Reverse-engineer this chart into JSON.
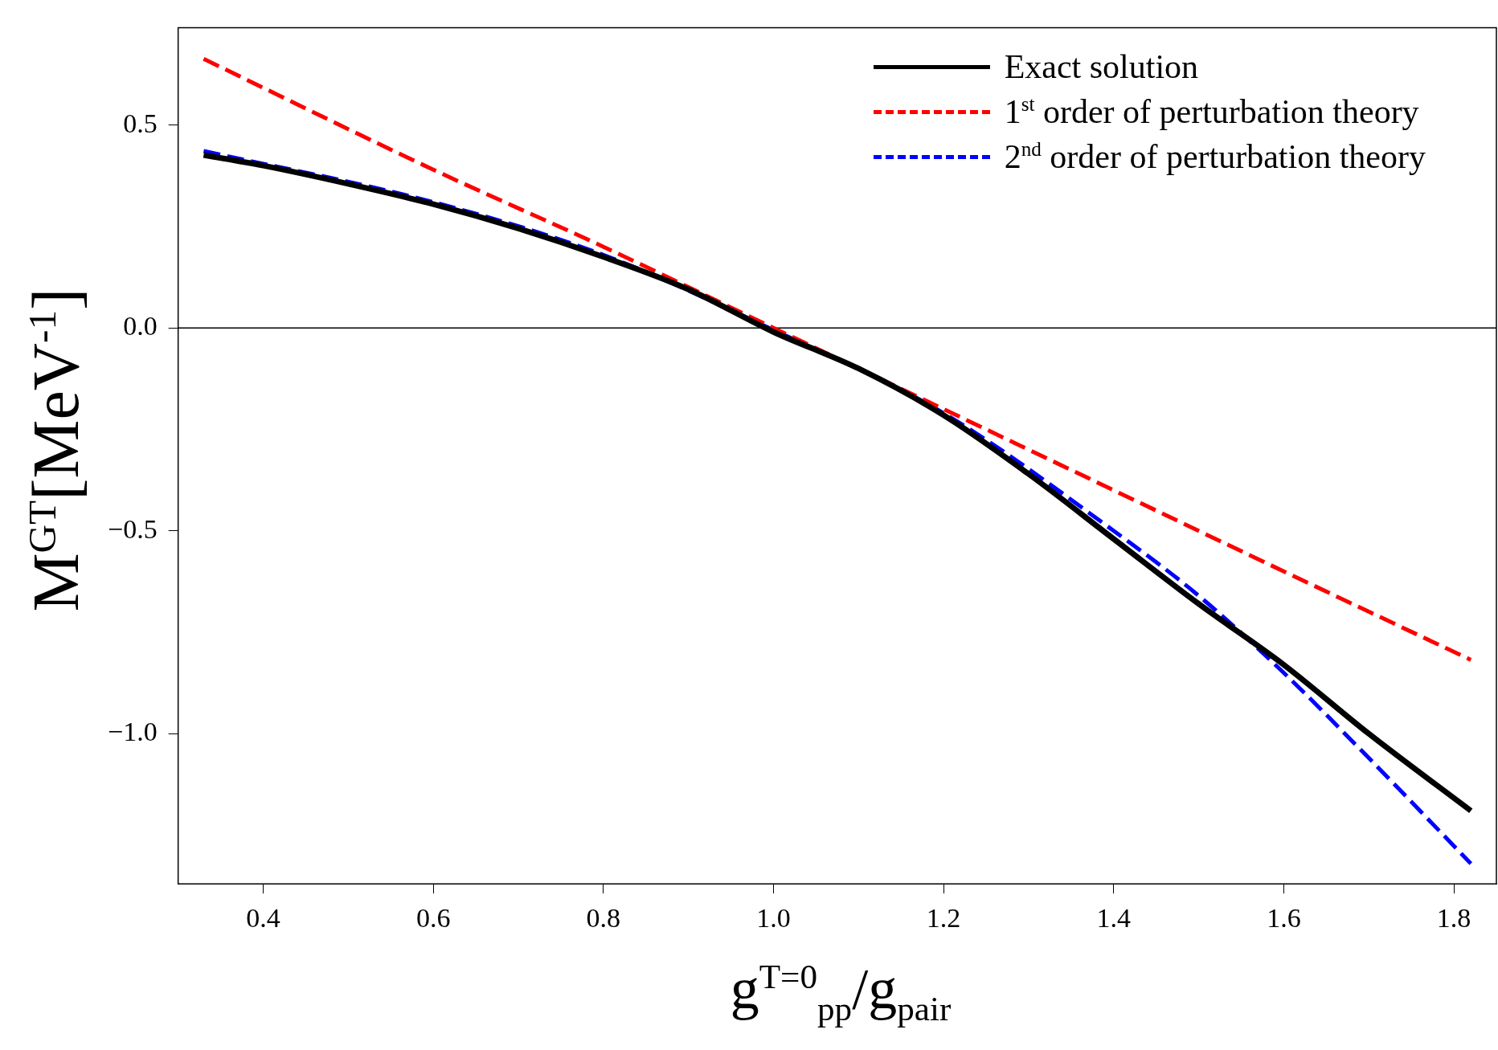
{
  "chart_data": {
    "type": "line",
    "xlabel": "g$^{T=0}$$_{pp}$/g$_{pair}$",
    "ylabel": "M$^{GT}$[MeV$^{-1}$]",
    "xlim": [
      0.3,
      1.85
    ],
    "xticks": [
      0.4,
      0.6,
      0.8,
      {
        "value": 1,
        "label": "1.0"
      },
      1.2,
      1.4,
      1.6,
      1.8
    ],
    "ylim": [
      -1.37,
      0.74
    ],
    "yticks": [
      {
        "value": -1,
        "label": "−1.0"
      },
      {
        "value": -0.5,
        "label": "−0.5"
      },
      {
        "value": 0,
        "label": "0.0"
      },
      0.5
    ],
    "grid": false,
    "legend": "top right",
    "marker": "none",
    "ref_lines": [
      {
        "axis": "y",
        "value": 0,
        "color": "#000000"
      }
    ],
    "series": [
      {
        "name": "Exact solution",
        "color": "#000000",
        "line_style": "solid",
        "x": [
          0.33,
          0.4,
          0.5,
          0.6,
          0.7,
          0.8,
          0.9,
          1.0,
          1.1,
          1.2,
          1.3,
          1.4,
          1.5,
          1.6,
          1.7,
          1.82
        ],
        "values": [
          0.426,
          0.4,
          0.355,
          0.305,
          0.245,
          0.175,
          0.095,
          -0.01,
          -0.1,
          -0.215,
          -0.36,
          -0.52,
          -0.68,
          -0.83,
          -1.0,
          -1.19
        ]
      },
      {
        "name": "1$^{st}$ order of perturbation theory",
        "color": "#ff0000",
        "line_style": "dashed",
        "x": [
          0.33,
          0.6,
          0.8,
          1.0,
          1.2,
          1.4,
          1.6,
          1.82
        ],
        "values": [
          0.663,
          0.39,
          0.2,
          0.0,
          -0.2,
          -0.4,
          -0.6,
          -0.818
        ]
      },
      {
        "name": "2$^{nd}$ order of perturbation theory",
        "color": "#0000ff",
        "line_style": "dashed",
        "x": [
          0.33,
          0.6,
          0.8,
          1.0,
          1.2,
          1.4,
          1.5,
          1.6,
          1.7,
          1.82
        ],
        "values": [
          0.436,
          0.31,
          0.18,
          -0.005,
          -0.21,
          -0.5,
          -0.66,
          -0.85,
          -1.06,
          -1.32
        ]
      }
    ]
  }
}
